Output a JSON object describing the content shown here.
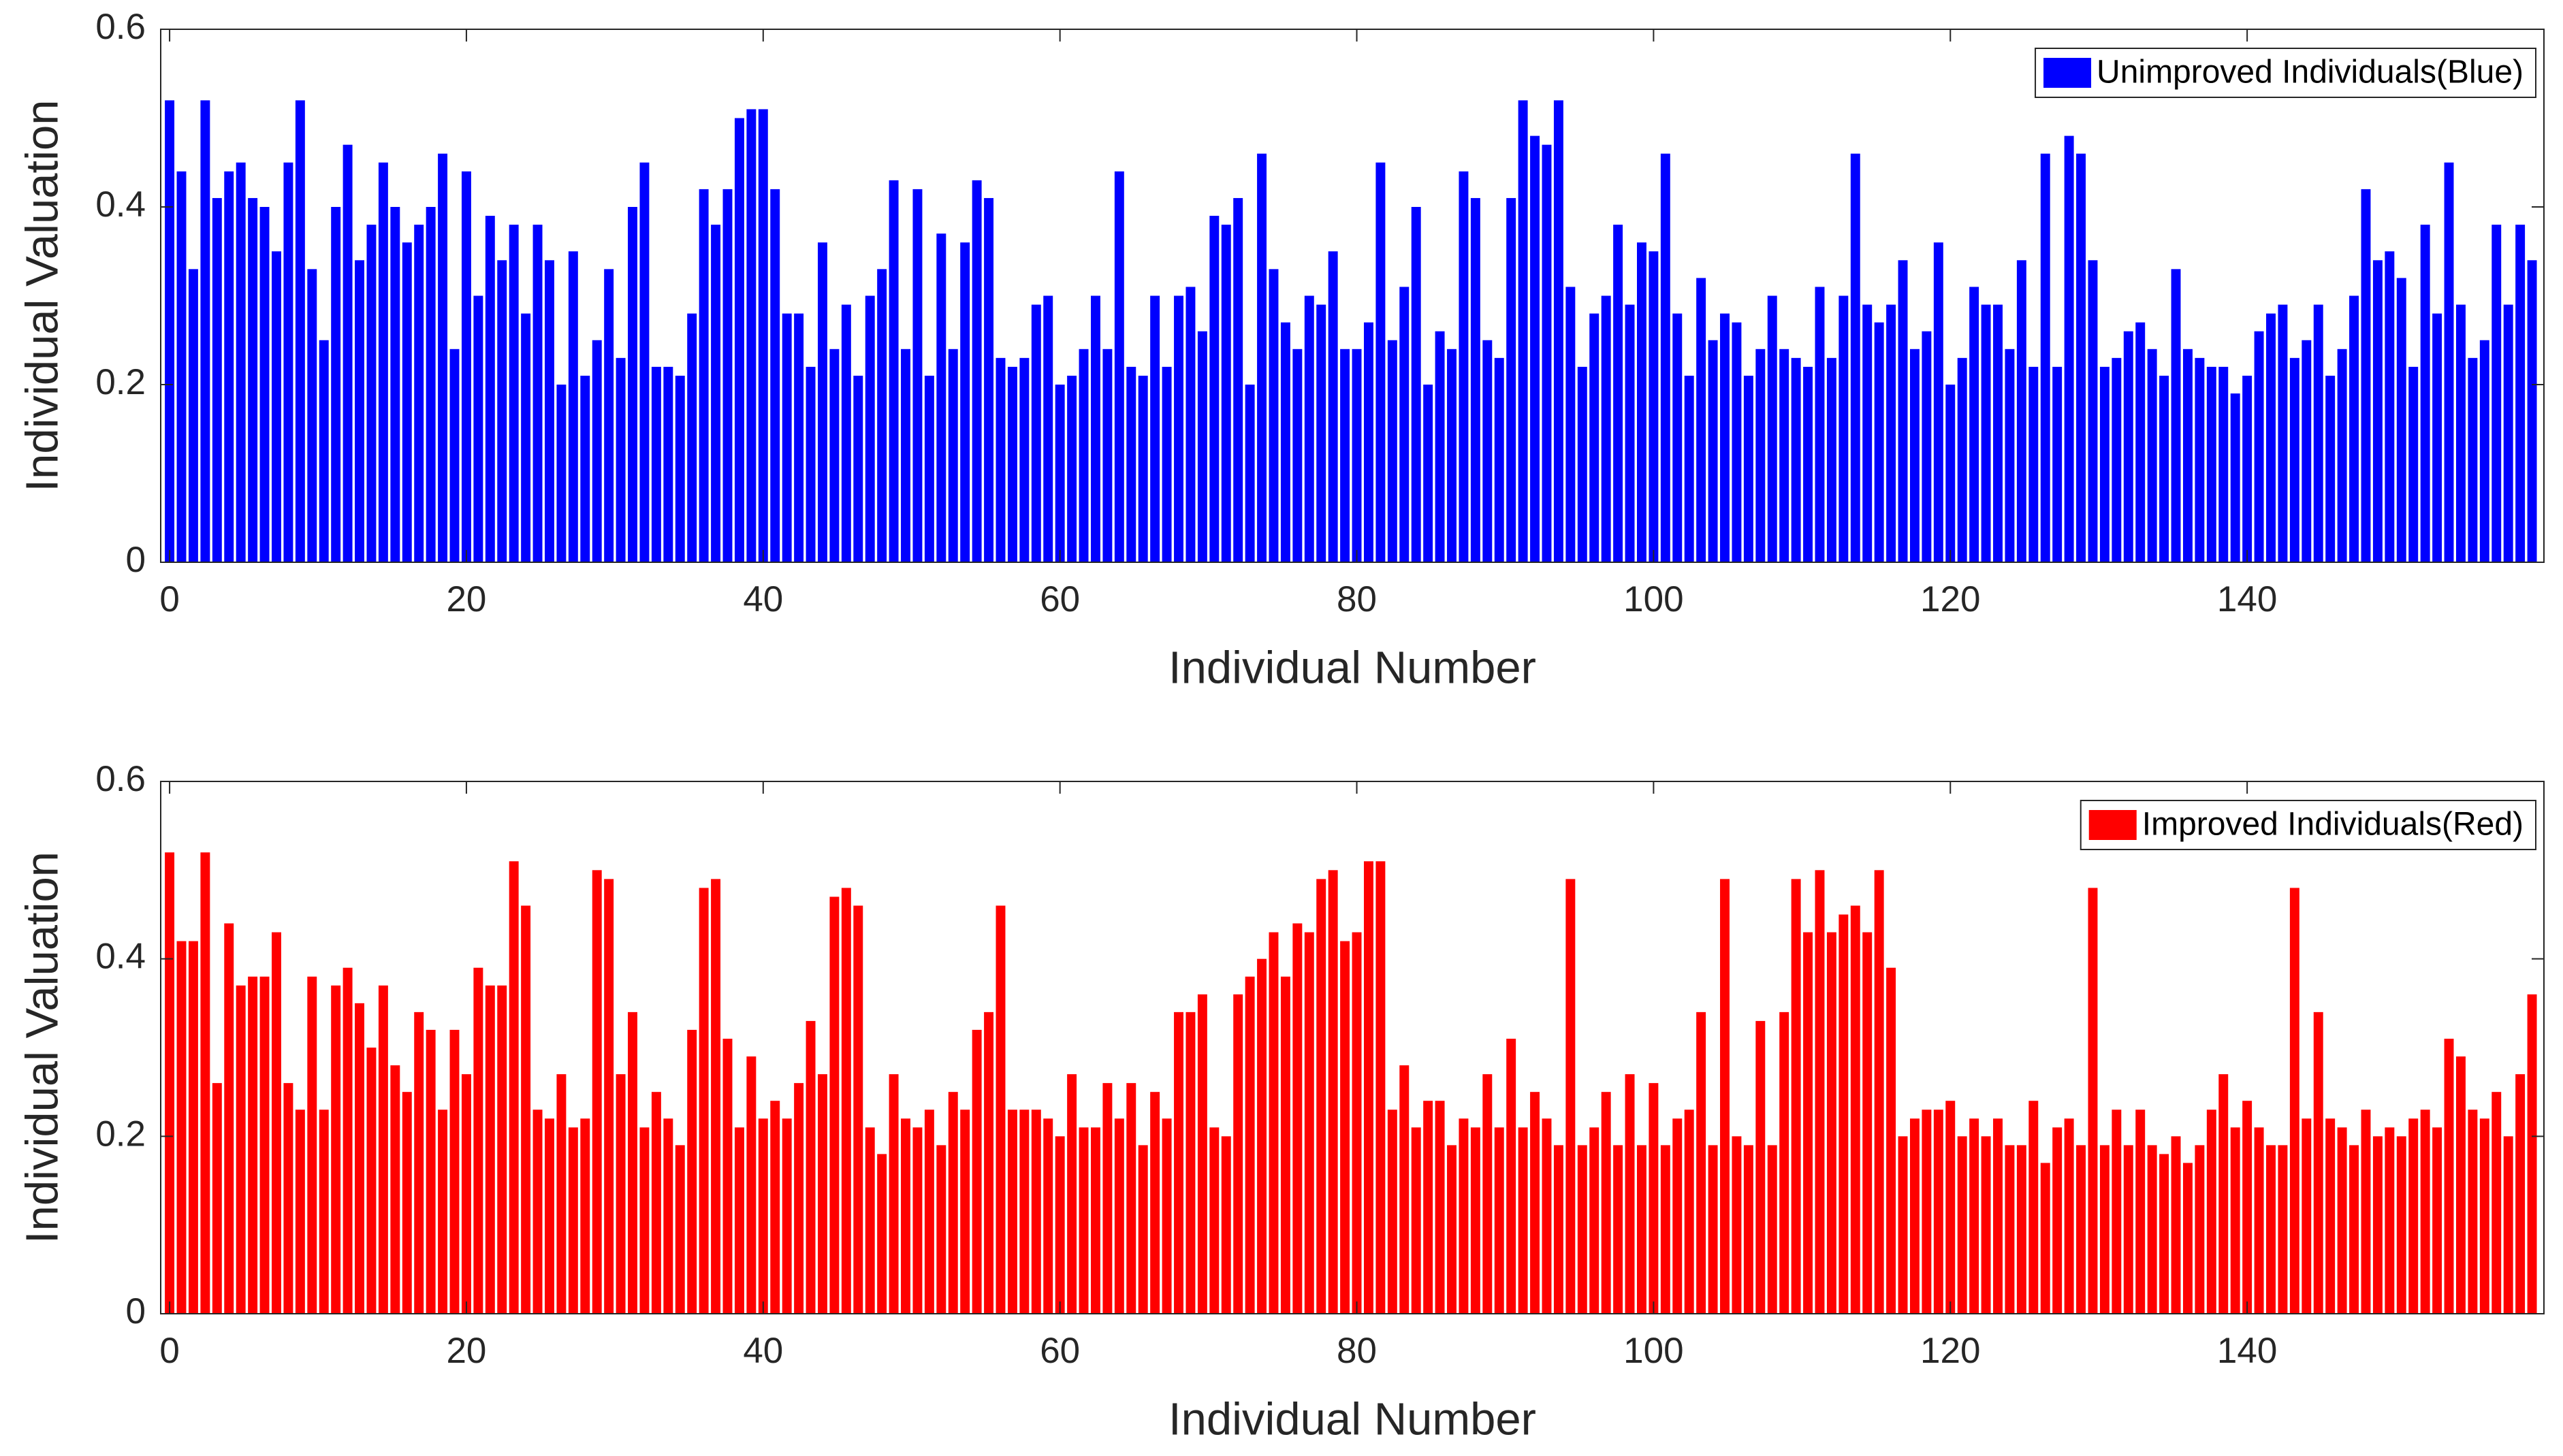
{
  "chart_data": [
    {
      "type": "bar",
      "xlabel": "Individual Number",
      "ylabel": "Individual Valuation",
      "legend": "upper right",
      "xlim": [
        -0.6,
        160
      ],
      "ylim": [
        0,
        0.6
      ],
      "xticks": [
        0,
        20,
        40,
        60,
        80,
        100,
        120,
        140
      ],
      "yticks": [
        0,
        0.2,
        0.4,
        0.6
      ],
      "grid": false,
      "x": [
        0,
        0.8,
        1.6,
        2.4,
        3.2,
        4,
        4.8,
        5.6,
        6.4,
        7.2,
        8,
        8.8,
        9.6,
        10.4,
        11.2,
        12,
        12.8,
        13.6,
        14.4,
        15.2,
        16,
        16.8,
        17.6,
        18.4,
        19.2,
        20,
        20.8,
        21.6,
        22.4,
        23.2,
        24,
        24.8,
        25.6,
        26.4,
        27.2,
        28,
        28.8,
        29.6,
        30.4,
        31.2,
        32,
        32.8,
        33.6,
        34.4,
        35.2,
        36,
        36.8,
        37.6,
        38.4,
        39.2,
        40,
        40.8,
        41.6,
        42.4,
        43.2,
        44,
        44.8,
        45.6,
        46.4,
        47.2,
        48,
        48.8,
        49.6,
        50.4,
        51.2,
        52,
        52.8,
        53.6,
        54.4,
        55.2,
        56,
        56.8,
        57.6,
        58.4,
        59.2,
        60,
        60.8,
        61.6,
        62.4,
        63.2,
        64,
        64.8,
        65.6,
        66.4,
        67.2,
        68,
        68.8,
        69.6,
        70.4,
        71.2,
        72,
        72.8,
        73.6,
        74.4,
        75.2,
        76,
        76.8,
        77.6,
        78.4,
        79.2,
        80,
        80.8,
        81.6,
        82.4,
        83.2,
        84,
        84.8,
        85.6,
        86.4,
        87.2,
        88,
        88.8,
        89.6,
        90.4,
        91.2,
        92,
        92.8,
        93.6,
        94.4,
        95.2,
        96,
        96.8,
        97.6,
        98.4,
        99.2,
        100,
        100.8,
        101.6,
        102.4,
        103.2,
        104,
        104.8,
        105.6,
        106.4,
        107.2,
        108,
        108.8,
        109.6,
        110.4,
        111.2,
        112,
        112.8,
        113.6,
        114.4,
        115.2,
        116,
        116.8,
        117.6,
        118.4,
        119.2,
        120,
        120.8,
        121.6,
        122.4,
        123.2,
        124,
        124.8,
        125.6,
        126.4,
        127.2,
        128,
        128.8,
        129.6,
        130.4,
        131.2,
        132,
        132.8,
        133.6,
        134.4,
        135.2,
        136,
        136.8,
        137.6,
        138.4,
        139.2,
        140,
        140.8,
        141.6,
        142.4,
        143.2,
        144,
        144.8,
        145.6,
        146.4,
        147.2,
        148,
        148.8,
        149.6,
        150.4,
        151.2,
        152,
        152.8,
        153.6,
        154.4,
        155.2,
        156,
        156.8,
        157.6,
        158.4,
        159.2
      ],
      "series": [
        {
          "name": "Unimproved Individuals(Blue)",
          "color": "#0000ff",
          "values": [
            0.52,
            0.44,
            0.33,
            0.52,
            0.41,
            0.44,
            0.45,
            0.41,
            0.4,
            0.35,
            0.45,
            0.52,
            0.33,
            0.25,
            0.4,
            0.47,
            0.34,
            0.38,
            0.45,
            0.4,
            0.36,
            0.38,
            0.4,
            0.46,
            0.24,
            0.44,
            0.3,
            0.39,
            0.34,
            0.38,
            0.28,
            0.38,
            0.34,
            0.2,
            0.35,
            0.21,
            0.25,
            0.33,
            0.23,
            0.4,
            0.45,
            0.22,
            0.22,
            0.21,
            0.28,
            0.42,
            0.38,
            0.42,
            0.5,
            0.51,
            0.51,
            0.42,
            0.28,
            0.28,
            0.22,
            0.36,
            0.24,
            0.29,
            0.21,
            0.3,
            0.33,
            0.43,
            0.24,
            0.42,
            0.21,
            0.37,
            0.24,
            0.36,
            0.43,
            0.41,
            0.23,
            0.22,
            0.23,
            0.29,
            0.3,
            0.2,
            0.21,
            0.24,
            0.3,
            0.24,
            0.44,
            0.22,
            0.21,
            0.3,
            0.22,
            0.3,
            0.31,
            0.26,
            0.39,
            0.38,
            0.41,
            0.2,
            0.46,
            0.33,
            0.27,
            0.24,
            0.3,
            0.29,
            0.35,
            0.24,
            0.24,
            0.27,
            0.45,
            0.25,
            0.31,
            0.4,
            0.2,
            0.26,
            0.24,
            0.44,
            0.41,
            0.25,
            0.23,
            0.41,
            0.52,
            0.48,
            0.47,
            0.52,
            0.31,
            0.22,
            0.28,
            0.3,
            0.38,
            0.29,
            0.36,
            0.35,
            0.46,
            0.28,
            0.21,
            0.32,
            0.25,
            0.28,
            0.27,
            0.21,
            0.24,
            0.3,
            0.24,
            0.23,
            0.22,
            0.31,
            0.23,
            0.3,
            0.46,
            0.29,
            0.27,
            0.29,
            0.34,
            0.24,
            0.26,
            0.36,
            0.2,
            0.23,
            0.31,
            0.29,
            0.29,
            0.24,
            0.34,
            0.22,
            0.46,
            0.22,
            0.48,
            0.46,
            0.34,
            0.22,
            0.23,
            0.26,
            0.27,
            0.24,
            0.21,
            0.33,
            0.24,
            0.23,
            0.22,
            0.22,
            0.19,
            0.21,
            0.26,
            0.28,
            0.29,
            0.23,
            0.25,
            0.29,
            0.21,
            0.24,
            0.3,
            0.42,
            0.34,
            0.35,
            0.32,
            0.22,
            0.38,
            0.28,
            0.45,
            0.29,
            0.23,
            0.25,
            0.38,
            0.29,
            0.38,
            0.34
          ]
        }
      ]
    },
    {
      "type": "bar",
      "xlabel": "Individual Number",
      "ylabel": "Individual Valuation",
      "legend": "upper right",
      "xlim": [
        -0.6,
        160
      ],
      "ylim": [
        0,
        0.6
      ],
      "xticks": [
        0,
        20,
        40,
        60,
        80,
        100,
        120,
        140
      ],
      "yticks": [
        0,
        0.2,
        0.4,
        0.6
      ],
      "grid": false,
      "x": [
        0,
        0.8,
        1.6,
        2.4,
        3.2,
        4,
        4.8,
        5.6,
        6.4,
        7.2,
        8,
        8.8,
        9.6,
        10.4,
        11.2,
        12,
        12.8,
        13.6,
        14.4,
        15.2,
        16,
        16.8,
        17.6,
        18.4,
        19.2,
        20,
        20.8,
        21.6,
        22.4,
        23.2,
        24,
        24.8,
        25.6,
        26.4,
        27.2,
        28,
        28.8,
        29.6,
        30.4,
        31.2,
        32,
        32.8,
        33.6,
        34.4,
        35.2,
        36,
        36.8,
        37.6,
        38.4,
        39.2,
        40,
        40.8,
        41.6,
        42.4,
        43.2,
        44,
        44.8,
        45.6,
        46.4,
        47.2,
        48,
        48.8,
        49.6,
        50.4,
        51.2,
        52,
        52.8,
        53.6,
        54.4,
        55.2,
        56,
        56.8,
        57.6,
        58.4,
        59.2,
        60,
        60.8,
        61.6,
        62.4,
        63.2,
        64,
        64.8,
        65.6,
        66.4,
        67.2,
        68,
        68.8,
        69.6,
        70.4,
        71.2,
        72,
        72.8,
        73.6,
        74.4,
        75.2,
        76,
        76.8,
        77.6,
        78.4,
        79.2,
        80,
        80.8,
        81.6,
        82.4,
        83.2,
        84,
        84.8,
        85.6,
        86.4,
        87.2,
        88,
        88.8,
        89.6,
        90.4,
        91.2,
        92,
        92.8,
        93.6,
        94.4,
        95.2,
        96,
        96.8,
        97.6,
        98.4,
        99.2,
        100,
        100.8,
        101.6,
        102.4,
        103.2,
        104,
        104.8,
        105.6,
        106.4,
        107.2,
        108,
        108.8,
        109.6,
        110.4,
        111.2,
        112,
        112.8,
        113.6,
        114.4,
        115.2,
        116,
        116.8,
        117.6,
        118.4,
        119.2,
        120,
        120.8,
        121.6,
        122.4,
        123.2,
        124,
        124.8,
        125.6,
        126.4,
        127.2,
        128,
        128.8,
        129.6,
        130.4,
        131.2,
        132,
        132.8,
        133.6,
        134.4,
        135.2,
        136,
        136.8,
        137.6,
        138.4,
        139.2,
        140,
        140.8,
        141.6,
        142.4,
        143.2,
        144,
        144.8,
        145.6,
        146.4,
        147.2,
        148,
        148.8,
        149.6,
        150.4,
        151.2,
        152,
        152.8,
        153.6,
        154.4,
        155.2,
        156,
        156.8,
        157.6,
        158.4,
        159.2
      ],
      "series": [
        {
          "name": "Improved Individuals(Red)",
          "color": "#ff0000",
          "values": [
            0.52,
            0.42,
            0.42,
            0.52,
            0.26,
            0.44,
            0.37,
            0.38,
            0.38,
            0.43,
            0.26,
            0.23,
            0.38,
            0.23,
            0.37,
            0.39,
            0.35,
            0.3,
            0.37,
            0.28,
            0.25,
            0.34,
            0.32,
            0.23,
            0.32,
            0.27,
            0.39,
            0.37,
            0.37,
            0.51,
            0.46,
            0.23,
            0.22,
            0.27,
            0.21,
            0.22,
            0.5,
            0.49,
            0.27,
            0.34,
            0.21,
            0.25,
            0.22,
            0.19,
            0.32,
            0.48,
            0.49,
            0.31,
            0.21,
            0.29,
            0.22,
            0.24,
            0.22,
            0.26,
            0.33,
            0.27,
            0.47,
            0.48,
            0.46,
            0.21,
            0.18,
            0.27,
            0.22,
            0.21,
            0.23,
            0.19,
            0.25,
            0.23,
            0.32,
            0.34,
            0.46,
            0.23,
            0.23,
            0.23,
            0.22,
            0.2,
            0.27,
            0.21,
            0.21,
            0.26,
            0.22,
            0.26,
            0.19,
            0.25,
            0.22,
            0.34,
            0.34,
            0.36,
            0.21,
            0.2,
            0.36,
            0.38,
            0.4,
            0.43,
            0.38,
            0.44,
            0.43,
            0.49,
            0.5,
            0.42,
            0.43,
            0.51,
            0.51,
            0.23,
            0.28,
            0.21,
            0.24,
            0.24,
            0.19,
            0.22,
            0.21,
            0.27,
            0.21,
            0.31,
            0.21,
            0.25,
            0.22,
            0.19,
            0.49,
            0.19,
            0.21,
            0.25,
            0.19,
            0.27,
            0.19,
            0.26,
            0.19,
            0.22,
            0.23,
            0.34,
            0.19,
            0.49,
            0.2,
            0.19,
            0.33,
            0.19,
            0.34,
            0.49,
            0.43,
            0.5,
            0.43,
            0.45,
            0.46,
            0.43,
            0.5,
            0.39,
            0.2,
            0.22,
            0.23,
            0.23,
            0.24,
            0.2,
            0.22,
            0.2,
            0.22,
            0.19,
            0.19,
            0.24,
            0.17,
            0.21,
            0.22,
            0.19,
            0.48,
            0.19,
            0.23,
            0.19,
            0.23,
            0.19,
            0.18,
            0.2,
            0.17,
            0.19,
            0.23,
            0.27,
            0.21,
            0.24,
            0.21,
            0.19,
            0.19,
            0.48,
            0.22,
            0.34,
            0.22,
            0.21,
            0.19,
            0.23,
            0.2,
            0.21,
            0.2,
            0.22,
            0.23,
            0.21,
            0.31,
            0.29,
            0.23,
            0.22,
            0.25,
            0.2,
            0.27,
            0.36
          ]
        }
      ]
    }
  ]
}
